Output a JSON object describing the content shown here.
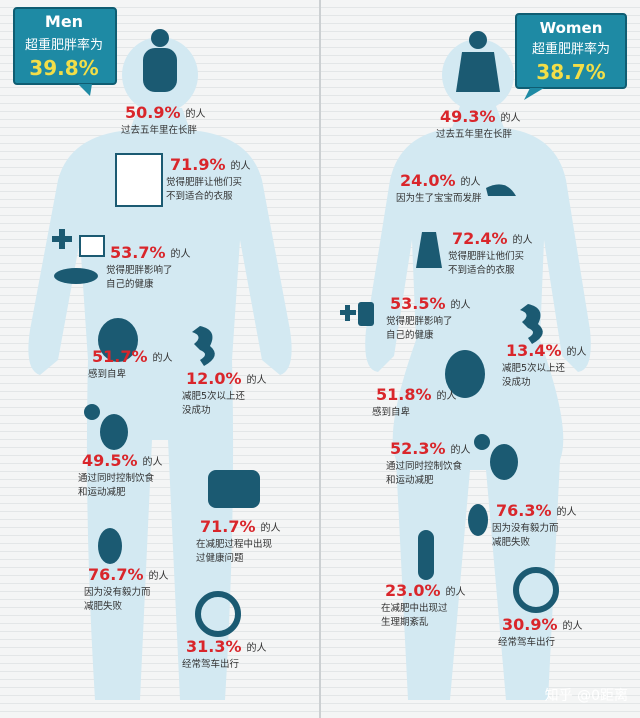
{
  "men": {
    "label": "Men",
    "caption": "超重肥胖率为",
    "rate": "39.8%",
    "stats": [
      {
        "value": "50.9%",
        "unit": "的人",
        "lines": [
          "过去五年里在长胖"
        ]
      },
      {
        "value": "71.9%",
        "unit": "的人",
        "lines": [
          "觉得肥胖让他们买",
          "不到适合的衣服"
        ]
      },
      {
        "value": "53.7%",
        "unit": "的人",
        "lines": [
          "觉得肥胖影响了",
          "自己的健康"
        ]
      },
      {
        "value": "51.7%",
        "unit": "的人",
        "lines": [
          "感到自卑"
        ]
      },
      {
        "value": "12.0%",
        "unit": "的人",
        "lines": [
          "减肥5次以上还",
          "没成功"
        ]
      },
      {
        "value": "49.5%",
        "unit": "的人",
        "lines": [
          "通过同时控制饮食",
          "和运动减肥"
        ]
      },
      {
        "value": "71.7%",
        "unit": "的人",
        "lines": [
          "在减肥过程中出现",
          "过健康问题"
        ]
      },
      {
        "value": "76.7%",
        "unit": "的人",
        "lines": [
          "因为没有毅力而",
          "减肥失败"
        ]
      },
      {
        "value": "31.3%",
        "unit": "的人",
        "lines": [
          "经常驾车出行"
        ]
      }
    ]
  },
  "women": {
    "label": "Women",
    "caption": "超重肥胖率为",
    "rate": "38.7%",
    "stats": [
      {
        "value": "49.3%",
        "unit": "的人",
        "lines": [
          "过去五年里在长胖"
        ]
      },
      {
        "value": "24.0%",
        "unit": "的人",
        "lines": [
          "因为生了宝宝而发胖"
        ]
      },
      {
        "value": "72.4%",
        "unit": "的人",
        "lines": [
          "觉得肥胖让他们买",
          "不到适合的衣服"
        ]
      },
      {
        "value": "53.5%",
        "unit": "的人",
        "lines": [
          "觉得肥胖影响了",
          "自己的健康"
        ]
      },
      {
        "value": "13.4%",
        "unit": "的人",
        "lines": [
          "减肥5次以上还",
          "没成功"
        ]
      },
      {
        "value": "51.8%",
        "unit": "的人",
        "lines": [
          "感到自卑"
        ]
      },
      {
        "value": "52.3%",
        "unit": "的人",
        "lines": [
          "通过同时控制饮食",
          "和运动减肥"
        ]
      },
      {
        "value": "76.3%",
        "unit": "的人",
        "lines": [
          "因为没有毅力而",
          "减肥失败"
        ]
      },
      {
        "value": "23.0%",
        "unit": "的人",
        "lines": [
          "在减肥中出现过",
          "生理期紊乱"
        ]
      },
      {
        "value": "30.9%",
        "unit": "的人",
        "lines": [
          "经常驾车出行"
        ]
      }
    ]
  },
  "watermark": "知乎 @0距离"
}
